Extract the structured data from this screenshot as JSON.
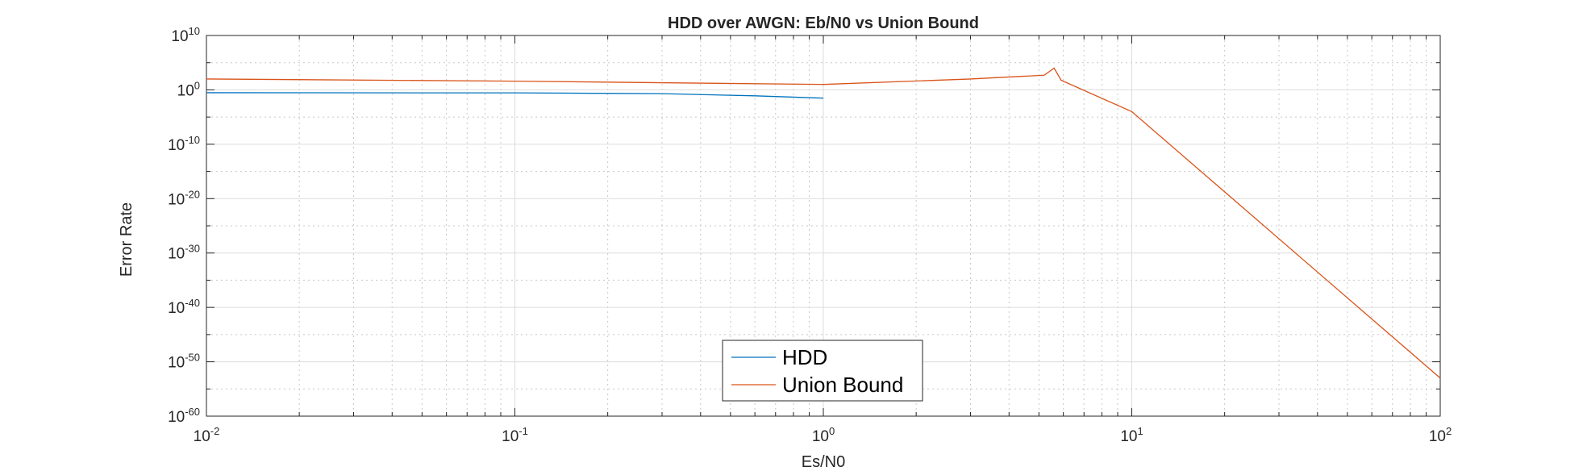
{
  "chart_data": {
    "type": "line",
    "title": "HDD over AWGN: Eb/N0 vs Union Bound",
    "xlabel": "Es/N0",
    "ylabel": "Error Rate",
    "xscale": "log",
    "yscale": "log",
    "xlim": [
      0.01,
      100
    ],
    "ylim": [
      1e-60,
      10000000000.0
    ],
    "grid": true,
    "minor_grid": true,
    "legend_position": "bottom-center",
    "x_ticks": [
      {
        "base": "10",
        "exp": "-2",
        "value": 0.01
      },
      {
        "base": "10",
        "exp": "-1",
        "value": 0.1
      },
      {
        "base": "10",
        "exp": "0",
        "value": 1
      },
      {
        "base": "10",
        "exp": "1",
        "value": 10
      },
      {
        "base": "10",
        "exp": "2",
        "value": 100
      }
    ],
    "y_ticks": [
      {
        "base": "10",
        "exp": "10",
        "value": 10000000000.0
      },
      {
        "base": "10",
        "exp": "0",
        "value": 1
      },
      {
        "base": "10",
        "exp": "-10",
        "value": 1e-10
      },
      {
        "base": "10",
        "exp": "-20",
        "value": 1e-20
      },
      {
        "base": "10",
        "exp": "-30",
        "value": 1e-30
      },
      {
        "base": "10",
        "exp": "-40",
        "value": 1e-40
      },
      {
        "base": "10",
        "exp": "-50",
        "value": 1e-50
      },
      {
        "base": "10",
        "exp": "-60",
        "value": 1e-60
      }
    ],
    "series": [
      {
        "name": "HDD",
        "color": "#0072BD",
        "points": [
          {
            "x": 0.01,
            "y": 0.3
          },
          {
            "x": 0.1,
            "y": 0.28
          },
          {
            "x": 0.3,
            "y": 0.2
          },
          {
            "x": 0.6,
            "y": 0.08
          },
          {
            "x": 1.0,
            "y": 0.03
          }
        ]
      },
      {
        "name": "Union Bound",
        "color": "#D95319",
        "points": [
          {
            "x": 0.01,
            "y": 100
          },
          {
            "x": 0.1,
            "y": 40
          },
          {
            "x": 1.0,
            "y": 10
          },
          {
            "x": 3.0,
            "y": 100
          },
          {
            "x": 5.2,
            "y": 500
          },
          {
            "x": 5.6,
            "y": 10000.0
          },
          {
            "x": 5.9,
            "y": 60
          },
          {
            "x": 10,
            "y": 0.0001
          },
          {
            "x": 100,
            "y": 1e-53
          }
        ]
      }
    ]
  }
}
